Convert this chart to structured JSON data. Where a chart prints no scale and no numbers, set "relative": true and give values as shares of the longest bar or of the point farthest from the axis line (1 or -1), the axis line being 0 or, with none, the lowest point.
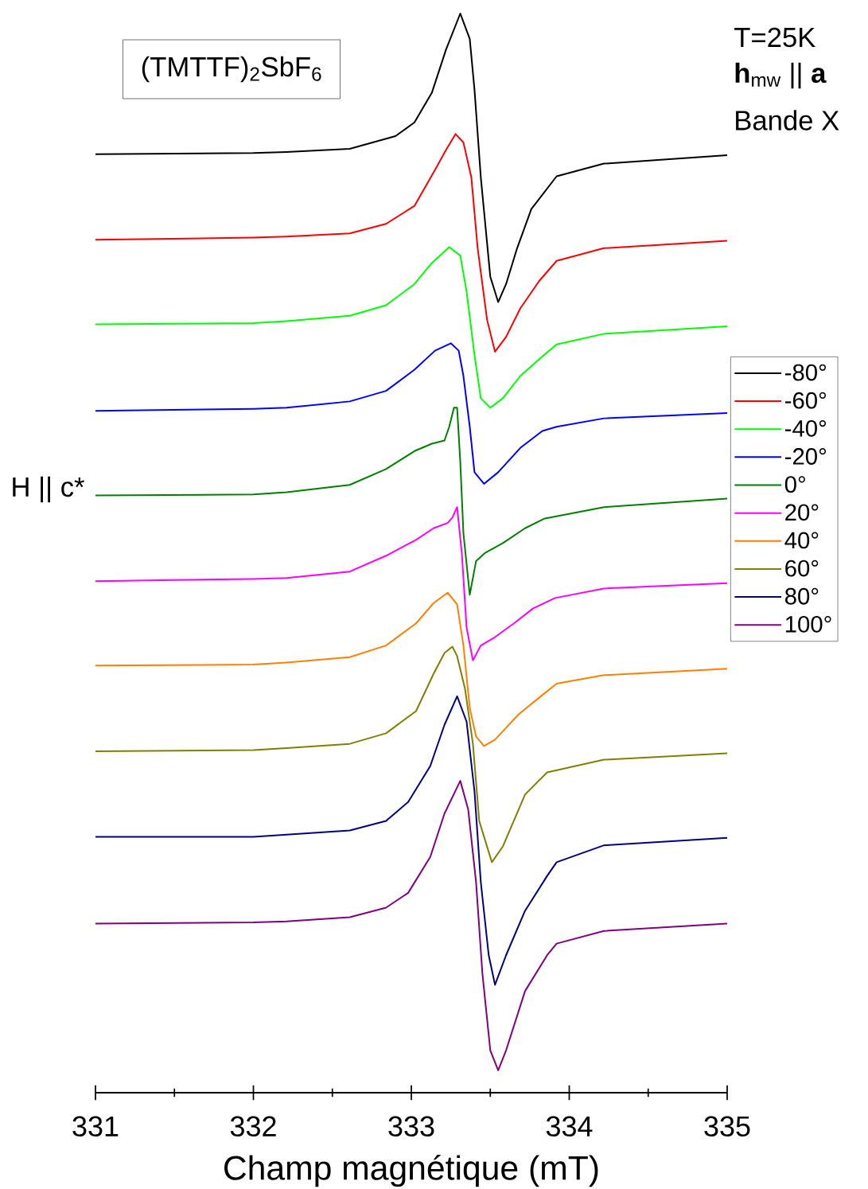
{
  "chart_data": {
    "type": "line",
    "relative": true,
    "title": "(TMTTF)$_{2}$SbF$_{6}$",
    "xlabel": "Champ magnétique (mT)",
    "annotations": [
      "T=25K",
      "**h**$_{mw}$ || **a**",
      "Bande X",
      "H || c*"
    ],
    "xlim": [
      331,
      335
    ],
    "xticks": [
      331,
      332,
      333,
      334,
      335
    ],
    "legend": "right",
    "line_style": "solid",
    "series": [
      {
        "name": "-80°",
        "color": "#000000",
        "x": [
          331,
          332,
          332.21,
          332.61,
          332.9,
          333.02,
          333.13,
          333.22,
          333.31,
          333.37,
          333.4,
          333.44,
          333.5,
          333.55,
          333.6,
          333.67,
          333.76,
          333.92,
          334.22,
          335
        ],
        "values": [
          0.867,
          0.868,
          0.869,
          0.872,
          0.884,
          0.897,
          0.925,
          0.966,
          1.0,
          0.976,
          0.928,
          0.845,
          0.751,
          0.727,
          0.744,
          0.778,
          0.815,
          0.846,
          0.858,
          0.866
        ]
      },
      {
        "name": "-60°",
        "color": "#ff0000",
        "x": [
          331,
          332,
          332.21,
          332.61,
          332.84,
          333.02,
          333.15,
          333.22,
          333.28,
          333.33,
          333.38,
          333.42,
          333.48,
          333.53,
          333.6,
          333.69,
          333.81,
          333.92,
          334.22,
          335
        ],
        "values": [
          0.786,
          0.788,
          0.789,
          0.792,
          0.801,
          0.818,
          0.852,
          0.871,
          0.886,
          0.878,
          0.845,
          0.778,
          0.71,
          0.68,
          0.694,
          0.721,
          0.747,
          0.766,
          0.778,
          0.785
        ]
      },
      {
        "name": "-40°",
        "color": "#00ff00",
        "x": [
          331,
          332,
          332.21,
          332.61,
          332.84,
          333.02,
          333.13,
          333.24,
          333.31,
          333.35,
          333.4,
          333.44,
          333.5,
          333.58,
          333.69,
          333.81,
          333.92,
          334.22,
          335
        ],
        "values": [
          0.706,
          0.707,
          0.709,
          0.714,
          0.724,
          0.744,
          0.764,
          0.779,
          0.771,
          0.737,
          0.677,
          0.636,
          0.627,
          0.636,
          0.657,
          0.673,
          0.687,
          0.697,
          0.704
        ]
      },
      {
        "name": "-20°",
        "color": "#0000ff",
        "x": [
          331,
          332,
          332.21,
          332.61,
          332.84,
          333.02,
          333.15,
          333.25,
          333.3,
          333.33,
          333.37,
          333.4,
          333.46,
          333.55,
          333.69,
          333.83,
          333.92,
          334.22,
          335
        ],
        "values": [
          0.624,
          0.626,
          0.627,
          0.633,
          0.643,
          0.663,
          0.681,
          0.688,
          0.681,
          0.657,
          0.609,
          0.566,
          0.555,
          0.566,
          0.589,
          0.605,
          0.609,
          0.617,
          0.622
        ]
      },
      {
        "name": "0°",
        "color": "#008000",
        "x": [
          331,
          332,
          332.21,
          332.61,
          332.84,
          333.02,
          333.13,
          333.21,
          333.24,
          333.27,
          333.29,
          333.31,
          333.33,
          333.37,
          333.41,
          333.47,
          333.58,
          333.72,
          333.84,
          334.22,
          335
        ],
        "values": [
          0.544,
          0.545,
          0.547,
          0.554,
          0.569,
          0.586,
          0.593,
          0.596,
          0.609,
          0.627,
          0.627,
          0.576,
          0.508,
          0.45,
          0.482,
          0.49,
          0.499,
          0.513,
          0.522,
          0.533,
          0.541
        ]
      },
      {
        "name": "20°",
        "color": "#ff00ff",
        "x": [
          331,
          332,
          332.21,
          332.61,
          332.84,
          333.03,
          333.14,
          333.23,
          333.26,
          333.29,
          333.32,
          333.35,
          333.39,
          333.44,
          333.53,
          333.65,
          333.77,
          333.91,
          334.22,
          335
        ],
        "values": [
          0.463,
          0.465,
          0.466,
          0.472,
          0.487,
          0.502,
          0.513,
          0.518,
          0.523,
          0.533,
          0.489,
          0.419,
          0.388,
          0.402,
          0.41,
          0.423,
          0.437,
          0.447,
          0.456,
          0.461
        ]
      },
      {
        "name": "40°",
        "color": "#ff8000",
        "x": [
          331,
          332,
          332.21,
          332.61,
          332.84,
          333.03,
          333.14,
          333.23,
          333.29,
          333.33,
          333.37,
          333.41,
          333.46,
          333.53,
          333.68,
          333.82,
          333.92,
          334.22,
          335
        ],
        "values": [
          0.383,
          0.384,
          0.386,
          0.391,
          0.402,
          0.423,
          0.442,
          0.452,
          0.441,
          0.402,
          0.343,
          0.316,
          0.307,
          0.313,
          0.337,
          0.354,
          0.366,
          0.374,
          0.38
        ]
      },
      {
        "name": "60°",
        "color": "#808000",
        "x": [
          331,
          332,
          332.21,
          332.61,
          332.84,
          333.03,
          333.14,
          333.21,
          333.26,
          333.29,
          333.34,
          333.39,
          333.43,
          333.51,
          333.58,
          333.72,
          333.86,
          334.22,
          335
        ],
        "values": [
          0.302,
          0.303,
          0.305,
          0.309,
          0.319,
          0.34,
          0.375,
          0.395,
          0.401,
          0.392,
          0.361,
          0.309,
          0.236,
          0.197,
          0.212,
          0.261,
          0.282,
          0.294,
          0.3
        ]
      },
      {
        "name": "80°",
        "color": "#000080",
        "x": [
          331,
          332,
          332.21,
          332.61,
          332.84,
          332.98,
          333.12,
          333.21,
          333.29,
          333.35,
          333.4,
          333.44,
          333.49,
          333.53,
          333.6,
          333.72,
          333.86,
          333.92,
          334.22,
          335
        ],
        "values": [
          0.221,
          0.221,
          0.223,
          0.227,
          0.236,
          0.254,
          0.288,
          0.327,
          0.354,
          0.33,
          0.264,
          0.178,
          0.109,
          0.081,
          0.109,
          0.151,
          0.184,
          0.197,
          0.213,
          0.22
        ]
      },
      {
        "name": "100°",
        "color": "#800080",
        "x": [
          331,
          332,
          332.21,
          332.61,
          332.84,
          332.98,
          333.12,
          333.21,
          333.31,
          333.36,
          333.41,
          333.45,
          333.5,
          333.55,
          333.6,
          333.72,
          333.86,
          333.92,
          334.22,
          335
        ],
        "values": [
          0.139,
          0.14,
          0.141,
          0.145,
          0.154,
          0.168,
          0.202,
          0.243,
          0.274,
          0.247,
          0.178,
          0.092,
          0.019,
          0.0,
          0.019,
          0.075,
          0.109,
          0.12,
          0.132,
          0.139
        ]
      }
    ]
  }
}
